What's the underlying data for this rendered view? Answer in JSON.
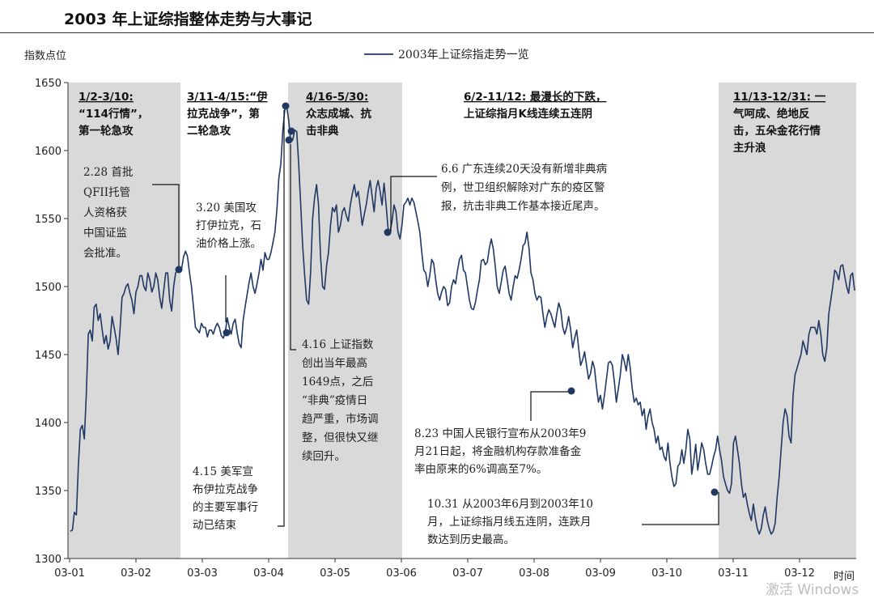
{
  "header": {
    "title": "2003 年上证综指整体走势与大事记"
  },
  "watermark": "激活 Windows",
  "chart_data": {
    "type": "line",
    "title": "",
    "ylabel": "指数点位",
    "xlabel": "时间",
    "ylim": [
      1300,
      1650
    ],
    "yticks": [
      1300,
      1350,
      1400,
      1450,
      1500,
      1550,
      1600,
      1650
    ],
    "x_labels": [
      "03-01",
      "03-02",
      "03-03",
      "03-04",
      "03-05",
      "03-06",
      "03-07",
      "03-08",
      "03-09",
      "03-10",
      "03-11",
      "03-12"
    ],
    "legend": {
      "position": "top-center"
    },
    "series": [
      {
        "name": "2003年上证综指走势一览",
        "color": "#1f3864",
        "values": [
          1320,
          1321,
          1334,
          1332,
          1368,
          1395,
          1398,
          1388,
          1420,
          1465,
          1468,
          1460,
          1485,
          1487,
          1475,
          1480,
          1468,
          1458,
          1464,
          1454,
          1460,
          1478,
          1470,
          1462,
          1450,
          1468,
          1492,
          1495,
          1500,
          1502,
          1495,
          1490,
          1480,
          1496,
          1500,
          1508,
          1508,
          1500,
          1497,
          1510,
          1505,
          1496,
          1500,
          1510,
          1505,
          1492,
          1484,
          1497,
          1510,
          1510,
          1490,
          1482,
          1500,
          1510,
          1512,
          1511,
          1513,
          1522,
          1526,
          1522,
          1510,
          1500,
          1485,
          1470,
          1468,
          1466,
          1473,
          1470,
          1470,
          1463,
          1468,
          1468,
          1465,
          1470,
          1473,
          1470,
          1464,
          1462,
          1466,
          1477,
          1470,
          1465,
          1473,
          1476,
          1466,
          1458,
          1455,
          1475,
          1485,
          1494,
          1503,
          1510,
          1500,
          1495,
          1502,
          1510,
          1520,
          1512,
          1525,
          1520,
          1520,
          1525,
          1532,
          1540,
          1556,
          1580,
          1590,
          1615,
          1630,
          1632,
          1622,
          1606,
          1608,
          1615,
          1614,
          1590,
          1560,
          1530,
          1508,
          1490,
          1487,
          1510,
          1550,
          1565,
          1575,
          1560,
          1522,
          1500,
          1498,
          1515,
          1525,
          1545,
          1558,
          1555,
          1560,
          1540,
          1545,
          1555,
          1558,
          1552,
          1548,
          1560,
          1568,
          1575,
          1566,
          1570,
          1558,
          1545,
          1553,
          1560,
          1570,
          1578,
          1566,
          1555,
          1572,
          1578,
          1570,
          1560,
          1576,
          1560,
          1543,
          1540,
          1548,
          1560,
          1555,
          1540,
          1535,
          1545,
          1560,
          1562,
          1565,
          1560,
          1565,
          1562,
          1555,
          1548,
          1540,
          1525,
          1512,
          1510,
          1500,
          1508,
          1520,
          1517,
          1505,
          1495,
          1490,
          1496,
          1500,
          1498,
          1486,
          1488,
          1500,
          1505,
          1502,
          1512,
          1520,
          1523,
          1512,
          1510,
          1500,
          1490,
          1484,
          1483,
          1488,
          1497,
          1505,
          1519,
          1520,
          1516,
          1518,
          1528,
          1535,
          1528,
          1515,
          1500,
          1495,
          1503,
          1512,
          1515,
          1505,
          1495,
          1490,
          1500,
          1508,
          1506,
          1512,
          1520,
          1530,
          1532,
          1540,
          1528,
          1510,
          1505,
          1495,
          1490,
          1493,
          1492,
          1480,
          1470,
          1478,
          1483,
          1480,
          1475,
          1470,
          1480,
          1488,
          1483,
          1470,
          1465,
          1470,
          1478,
          1468,
          1455,
          1462,
          1468,
          1455,
          1442,
          1446,
          1452,
          1442,
          1432,
          1436,
          1445,
          1440,
          1426,
          1415,
          1420,
          1410,
          1420,
          1432,
          1444,
          1445,
          1442,
          1430,
          1415,
          1425,
          1435,
          1450,
          1445,
          1438,
          1450,
          1440,
          1425,
          1415,
          1418,
          1413,
          1415,
          1405,
          1410,
          1395,
          1405,
          1410,
          1400,
          1395,
          1385,
          1390,
          1380,
          1382,
          1375,
          1372,
          1385,
          1370,
          1360,
          1353,
          1355,
          1368,
          1370,
          1380,
          1370,
          1380,
          1395,
          1388,
          1362,
          1372,
          1384,
          1365,
          1375,
          1385,
          1380,
          1370,
          1362,
          1362,
          1368,
          1375,
          1380,
          1390,
          1380,
          1372,
          1360,
          1355,
          1350,
          1348,
          1355,
          1385,
          1390,
          1380,
          1370,
          1355,
          1345,
          1348,
          1340,
          1333,
          1328,
          1340,
          1330,
          1322,
          1318,
          1322,
          1332,
          1338,
          1328,
          1322,
          1318,
          1320,
          1326,
          1345,
          1360,
          1380,
          1400,
          1410,
          1405,
          1390,
          1385,
          1420,
          1435,
          1440,
          1445,
          1450,
          1460,
          1455,
          1450,
          1465,
          1470,
          1470,
          1470,
          1465,
          1475,
          1465,
          1450,
          1445,
          1455,
          1480,
          1490,
          1500,
          1512,
          1510,
          1505,
          1515,
          1516,
          1508,
          1500,
          1495,
          1508,
          1510,
          1497
        ]
      }
    ],
    "shaded_periods": [
      {
        "label_lines": [
          "1/2-3/10:",
          "“114行情”，",
          "第一轮急攻"
        ]
      },
      {
        "label_lines": [
          "3/11-4/15:“伊",
          "拉克战争”，第",
          "二轮急攻"
        ]
      },
      {
        "label_lines": [
          "4/16-5/30:",
          "众志成城、抗",
          "击非典"
        ]
      },
      {
        "label_lines": [
          "6/2-11/12: 最漫长的下跌，",
          "上证综指月K线连续五连阴"
        ]
      },
      {
        "label_lines": [
          "11/13-12/31: 一",
          "气呵成、绝地反",
          "击，五朵金花行情",
          "主升浪"
        ]
      }
    ],
    "annotations": [
      {
        "lines": [
          "2.28 首批",
          "QFII托管",
          "人资格获",
          "中国证监",
          "会批准。"
        ]
      },
      {
        "lines": [
          "3.20 美国攻",
          "打伊拉克，石",
          "油价格上涨。"
        ]
      },
      {
        "lines": [
          "4.15 美军宣",
          "布伊拉克战争",
          "的主要军事行",
          "动已结束"
        ]
      },
      {
        "lines": [
          "4.16 上证指数",
          "创出当年最高",
          "1649点，之后",
          "“非典”疫情日",
          "趋严重，市场调",
          "整，但很快又继",
          "续回升。"
        ]
      },
      {
        "lines": [
          "6.6 广东连续20天没有新增非典病",
          "例，世卫组织解除对广东的疫区警",
          "报，抗击非典工作基本接近尾声。"
        ]
      },
      {
        "lines": [
          "8.23 中国人民银行宣布从2003年9",
          "月21日起，将金融机构存款准备金",
          "率由原来的6%调高至7%。"
        ]
      },
      {
        "lines": [
          "10.31 从2003年6月到2003年10",
          "月，上证综指月线五连阴，连跌月",
          "数达到历史最高。"
        ]
      }
    ]
  }
}
